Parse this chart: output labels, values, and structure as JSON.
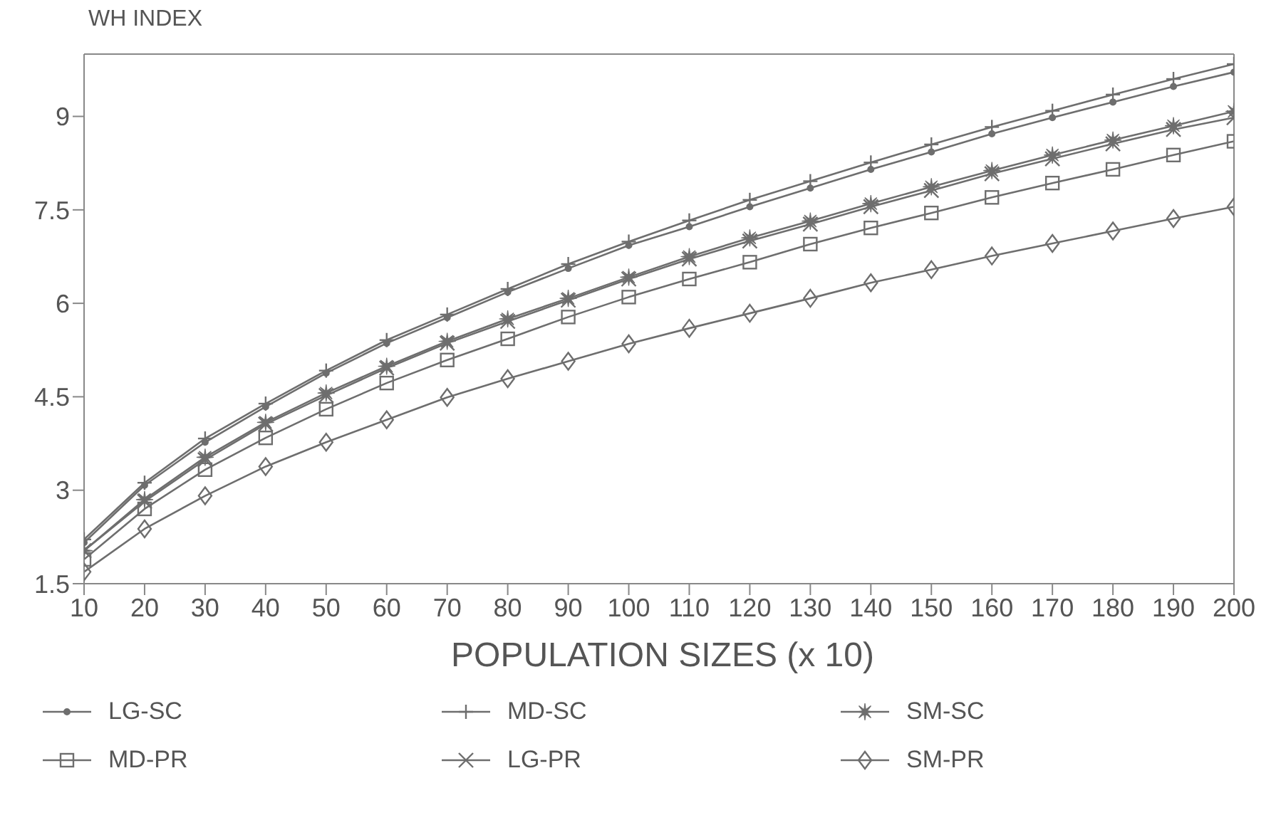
{
  "chart_data": {
    "type": "line",
    "ylabel": "WH INDEX",
    "xlabel": "POPULATION SIZES (x 10)",
    "x": [
      10,
      20,
      30,
      40,
      50,
      60,
      70,
      80,
      90,
      100,
      110,
      120,
      130,
      140,
      150,
      160,
      170,
      180,
      190,
      200
    ],
    "xlim": [
      10,
      200
    ],
    "xticks": [
      10,
      20,
      30,
      40,
      50,
      60,
      70,
      80,
      90,
      100,
      110,
      120,
      130,
      140,
      150,
      160,
      170,
      180,
      190,
      200
    ],
    "ylim": [
      1.5,
      10
    ],
    "yticks": [
      1.5,
      3,
      4.5,
      6,
      7.5,
      9
    ],
    "grid": false,
    "legend": "bottom",
    "series": [
      {
        "name": "LG-SC",
        "color": "#6e6e6e",
        "marker": "circle",
        "values": [
          2.16,
          3.08,
          3.77,
          4.34,
          4.88,
          5.36,
          5.77,
          6.18,
          6.56,
          6.93,
          7.23,
          7.55,
          7.85,
          8.15,
          8.43,
          8.72,
          8.98,
          9.23,
          9.48,
          9.71
        ]
      },
      {
        "name": "MD-SC",
        "color": "#6e6e6e",
        "marker": "plus",
        "values": [
          2.21,
          3.12,
          3.83,
          4.39,
          4.92,
          5.41,
          5.82,
          6.23,
          6.63,
          6.99,
          7.33,
          7.66,
          7.96,
          8.26,
          8.55,
          8.83,
          9.09,
          9.35,
          9.6,
          9.84
        ]
      },
      {
        "name": "SM-SC",
        "color": "#6e6e6e",
        "marker": "star",
        "values": [
          2.03,
          2.85,
          3.53,
          4.09,
          4.56,
          4.99,
          5.39,
          5.75,
          6.08,
          6.42,
          6.75,
          7.05,
          7.32,
          7.6,
          7.87,
          8.13,
          8.38,
          8.62,
          8.85,
          9.08
        ]
      },
      {
        "name": "MD-PR",
        "color": "#6e6e6e",
        "marker": "square",
        "values": [
          1.89,
          2.7,
          3.33,
          3.84,
          4.3,
          4.72,
          5.09,
          5.43,
          5.78,
          6.1,
          6.39,
          6.66,
          6.95,
          7.21,
          7.45,
          7.7,
          7.93,
          8.15,
          8.38,
          8.6
        ]
      },
      {
        "name": "LG-PR",
        "color": "#6e6e6e",
        "marker": "cross",
        "values": [
          2.03,
          2.82,
          3.49,
          4.06,
          4.52,
          4.96,
          5.36,
          5.71,
          6.05,
          6.39,
          6.71,
          7.0,
          7.27,
          7.55,
          7.81,
          8.08,
          8.32,
          8.56,
          8.79,
          8.98
        ]
      },
      {
        "name": "SM-PR",
        "color": "#6e6e6e",
        "marker": "diamond",
        "values": [
          1.69,
          2.38,
          2.91,
          3.38,
          3.77,
          4.13,
          4.49,
          4.79,
          5.07,
          5.35,
          5.6,
          5.84,
          6.08,
          6.33,
          6.54,
          6.76,
          6.96,
          7.16,
          7.36,
          7.55
        ]
      }
    ]
  }
}
